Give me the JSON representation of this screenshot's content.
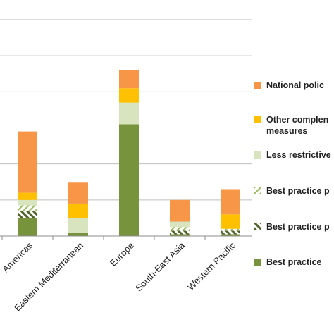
{
  "chart_data": {
    "type": "bar",
    "stacked": true,
    "categories": [
      "Americas",
      "Eastern Mediterranean",
      "Europe",
      "South-East Asia",
      "Western Pacific"
    ],
    "series": [
      {
        "name": "Best practice",
        "color": "#77933c",
        "pattern": "solid",
        "values": [
          5,
          1,
          31,
          0.5,
          0.5
        ]
      },
      {
        "name": "Best practice p",
        "color": "#4f6228",
        "pattern": "hatch-dense",
        "values": [
          2,
          0,
          0,
          1,
          1
        ]
      },
      {
        "name": "Best practice p",
        "color": "#9bbb59",
        "pattern": "hatch-light",
        "values": [
          1.5,
          0,
          0,
          1,
          0.5
        ]
      },
      {
        "name": "Less restrictive",
        "color": "#d7e4bd",
        "pattern": "solid",
        "values": [
          1.5,
          4,
          6,
          1.5,
          0
        ]
      },
      {
        "name": "Other complementary measures",
        "color": "#ffc000",
        "pattern": "solid",
        "values": [
          2,
          4,
          4,
          0,
          4
        ]
      },
      {
        "name": "National policy",
        "color": "#f79646",
        "pattern": "solid",
        "values": [
          17,
          6,
          5,
          6,
          7
        ]
      }
    ],
    "ylim": [
      0,
      60
    ],
    "grid": true,
    "legend": "right"
  },
  "legend_labels": [
    "National polic",
    "Other complen\nmeasures",
    "Less restrictive",
    "Best practice p",
    "Best practice p",
    "Best practice"
  ]
}
